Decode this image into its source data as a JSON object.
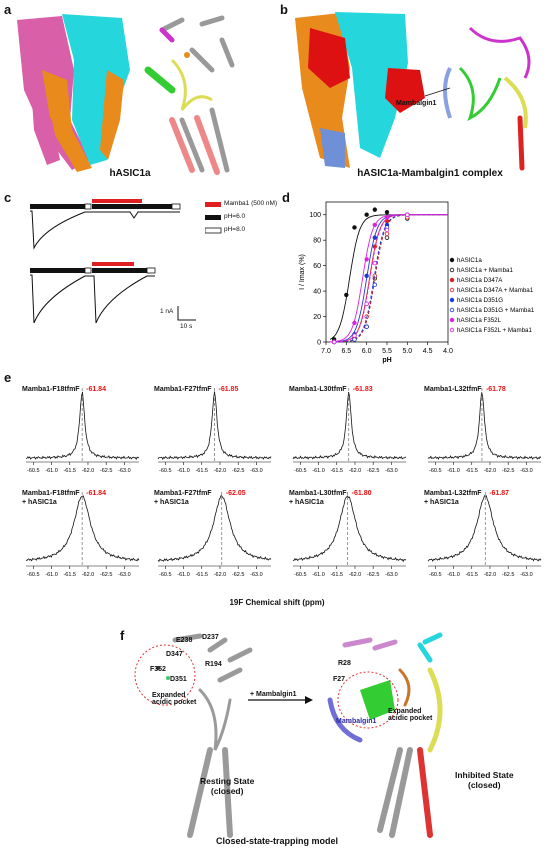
{
  "panels": {
    "a": {
      "label": "a",
      "caption": "hASIC1a"
    },
    "b": {
      "label": "b",
      "caption": "hASIC1a-Mambalgin1 complex",
      "callout": "Mambalgin1"
    },
    "c": {
      "label": "c",
      "legend": [
        {
          "text": "Mamba1 (500 nM)",
          "color": "#e02020"
        },
        {
          "text": "pH=6.0",
          "color": "#111111"
        },
        {
          "text": "pH=8.0",
          "color": "#ffffff"
        }
      ],
      "scale_y": "1 nA",
      "scale_x": "10 s"
    },
    "d": {
      "label": "d"
    },
    "e": {
      "label": "e",
      "xlabel": "19F Chemical shift (ppm)",
      "ticks": [
        "-60.5",
        "-61.0",
        "-61.5",
        "-62.0",
        "-62.5",
        "-63.0"
      ],
      "spectra": [
        {
          "title": "Mamba1-F18tfmF",
          "value": "-61.84"
        },
        {
          "title": "Mamba1-F27tfmF",
          "value": "-61.85"
        },
        {
          "title": "Mamba1-L30tfmF",
          "value": "-61.83"
        },
        {
          "title": "Mamba1-L32tfmF",
          "value": "-61.78"
        },
        {
          "title": "Mamba1-F18tfmF",
          "title2": "+ hASIC1a",
          "value": "-61.84"
        },
        {
          "title": "Mamba1-F27tfmF",
          "title2": "+ hASIC1a",
          "value": "-62.05"
        },
        {
          "title": "Mamba1-L30tfmF",
          "title2": "+ hASIC1a",
          "value": "-61.80"
        },
        {
          "title": "Mamba1-L32tfmF",
          "title2": "+ hASIC1a",
          "value": "-61.87"
        }
      ]
    },
    "f": {
      "label": "f",
      "residues_left": [
        "E238",
        "D237",
        "D347",
        "R194",
        "F352",
        "D351"
      ],
      "pocket_left": "Expanded\nacidic pocket",
      "arrow_text": "+ Mambalgin1",
      "state_left": "Resting State\n(closed)",
      "residues_right": [
        "R28",
        "F27"
      ],
      "callout_right": "Mambalgin1",
      "pocket_right": "Expanded\nacidic pocket",
      "state_right": "Inhibited State\n(closed)",
      "model": "Closed-state-trapping model"
    }
  },
  "chart_data": {
    "type": "scatter",
    "xlabel": "pH",
    "ylabel": "I / Imax (%)",
    "xlim": [
      7.0,
      4.0
    ],
    "ylim": [
      0,
      110
    ],
    "xticks": [
      "7.0",
      "6.5",
      "6.0",
      "5.5",
      "5.0",
      "4.5",
      "4.0"
    ],
    "yticks": [
      "0",
      "20",
      "40",
      "60",
      "80",
      "100"
    ],
    "legend_position": "right",
    "series": [
      {
        "name": "hASIC1a",
        "color": "#111111",
        "style": "solid",
        "marker": "filled",
        "x": [
          6.8,
          6.5,
          6.3,
          6.0,
          5.8,
          5.5
        ],
        "y": [
          2,
          37,
          90,
          100,
          104,
          102
        ],
        "pH50": 6.42
      },
      {
        "name": "hASIC1a + Mamba1",
        "color": "#111111",
        "style": "dashed",
        "marker": "open",
        "x": [
          6.8,
          6.3,
          6.0,
          5.8,
          5.5,
          5.0
        ],
        "y": [
          0,
          2,
          12,
          50,
          82,
          97
        ],
        "pH50": 5.8
      },
      {
        "name": "hASIC1a D347A",
        "color": "#e02020",
        "style": "solid",
        "marker": "filled",
        "x": [
          6.8,
          6.3,
          6.0,
          5.8,
          5.5,
          5.0
        ],
        "y": [
          0,
          5,
          30,
          75,
          95,
          100
        ],
        "pH50": 5.93
      },
      {
        "name": "hASIC1a D347A + Mamba1",
        "color": "#e02020",
        "style": "dashed",
        "marker": "open",
        "x": [
          6.8,
          6.3,
          6.0,
          5.8,
          5.5,
          5.0
        ],
        "y": [
          0,
          3,
          20,
          52,
          85,
          98
        ],
        "pH50": 5.8
      },
      {
        "name": "hASIC1a D351G",
        "color": "#1a3cd8",
        "style": "solid",
        "marker": "filled",
        "x": [
          6.8,
          6.3,
          6.0,
          5.8,
          5.5,
          5.0
        ],
        "y": [
          0,
          6,
          52,
          82,
          92,
          100
        ],
        "pH50": 6.0
      },
      {
        "name": "hASIC1a D351G + Mamba1",
        "color": "#1a3cd8",
        "style": "dashed",
        "marker": "open",
        "x": [
          6.8,
          6.3,
          6.0,
          5.8,
          5.5,
          5.0
        ],
        "y": [
          0,
          2,
          12,
          45,
          90,
          100
        ],
        "pH50": 5.82
      },
      {
        "name": "hASIC1a F352L",
        "color": "#e020e0",
        "style": "solid",
        "marker": "filled",
        "x": [
          6.8,
          6.3,
          6.0,
          5.8,
          5.5,
          5.0
        ],
        "y": [
          0,
          15,
          65,
          92,
          98,
          100
        ],
        "pH50": 6.1
      },
      {
        "name": "hASIC1a F352L + Mamba1",
        "color": "#e020e0",
        "style": "dashed",
        "marker": "open",
        "x": [
          6.8,
          6.3,
          6.0,
          5.8,
          5.5,
          5.0
        ],
        "y": [
          0,
          5,
          30,
          62,
          88,
          100
        ],
        "pH50": 5.92
      }
    ]
  }
}
